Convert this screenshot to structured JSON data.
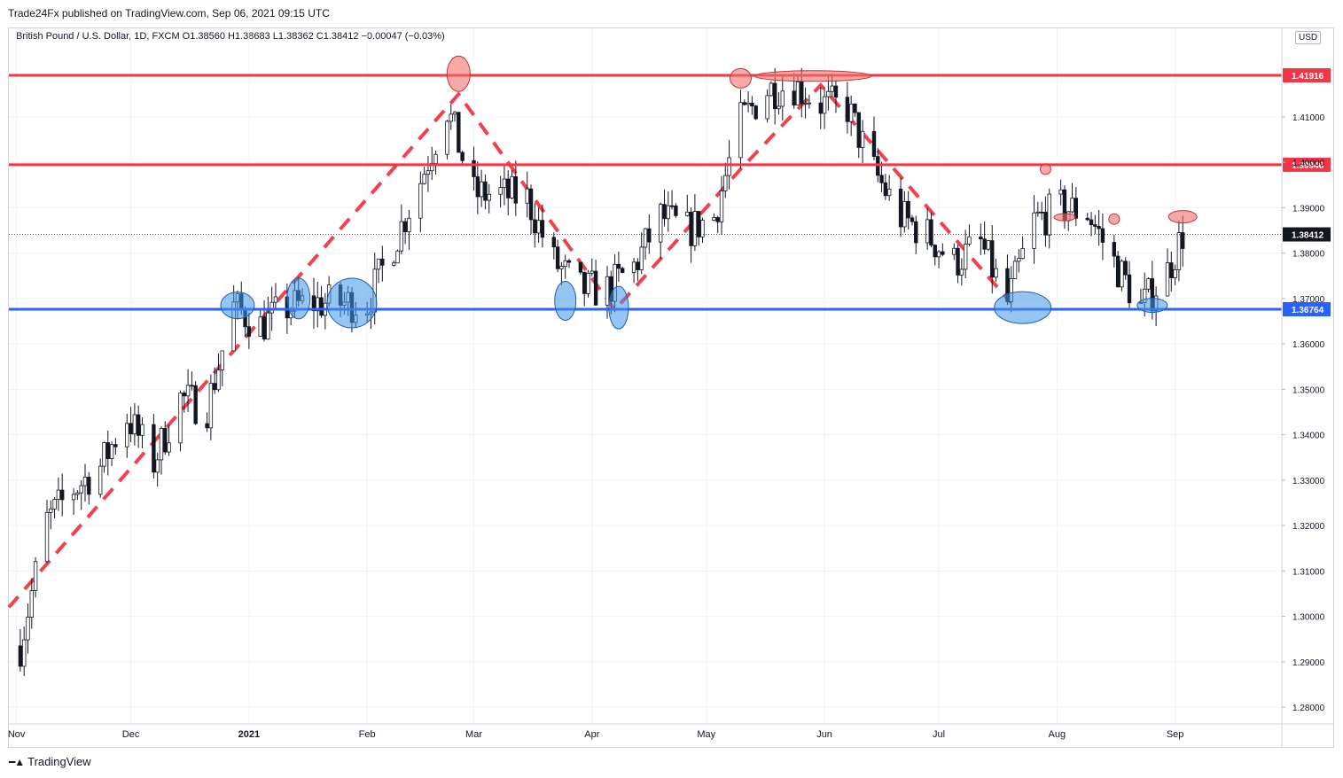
{
  "header": {
    "published": "Trade24Fx published on TradingView.com, Sep 06, 2021 09:15 UTC",
    "currency_button": "USD"
  },
  "footer": {
    "brand": "TradingView",
    "brand_icon": "tradingview-logo-icon"
  },
  "chart_data": {
    "type": "candlestick",
    "legend": {
      "text": "British Pound / U.S. Dollar, 1D, FXCM  O1.38560  H1.38683  L1.38362  C1.38412  −0.00047 (−0.03%)",
      "symbol": "British Pound / U.S. Dollar",
      "interval": "1D",
      "source": "FXCM",
      "open": 1.3856,
      "high": 1.38683,
      "low": 1.38362,
      "close": 1.38412,
      "change": -0.00047,
      "change_pct": -0.03
    },
    "y_ticks": [
      "1.28000",
      "1.29000",
      "1.30000",
      "1.31000",
      "1.32000",
      "1.33000",
      "1.34000",
      "1.35000",
      "1.36000",
      "1.37000",
      "1.38000",
      "1.39000",
      "1.40000",
      "1.41000"
    ],
    "ylim": [
      1.2765,
      1.4295
    ],
    "x_ticks": [
      "Nov",
      "Dec",
      "2021",
      "Feb",
      "Mar",
      "Apr",
      "May",
      "Jun",
      "Jul",
      "Aug",
      "Sep"
    ],
    "x_tick_dates": [
      "2020-11-01",
      "2020-12-01",
      "2021-01-01",
      "2021-02-01",
      "2021-03-01",
      "2021-04-01",
      "2021-05-01",
      "2021-06-01",
      "2021-07-01",
      "2021-08-01",
      "2021-09-01"
    ],
    "xlim": [
      "2020-10-30",
      "2021-09-29"
    ],
    "grid": true,
    "horizontal_levels": [
      {
        "value": 1.41916,
        "label": "1.41916",
        "color": "#f23645"
      },
      {
        "value": 1.39946,
        "label": "1.39946",
        "color": "#f23645"
      },
      {
        "value": 1.36764,
        "label": "1.36764",
        "color": "#2962ff"
      }
    ],
    "last_price": {
      "value": 1.38412,
      "label": "1.38412"
    },
    "trend_path": [
      [
        "2020-10-30",
        1.302
      ],
      [
        "2021-02-25",
        1.415
      ],
      [
        "2021-04-07",
        1.3675
      ],
      [
        "2021-05-10",
        1.3985
      ],
      [
        "2021-05-31",
        1.417
      ],
      [
        "2021-07-20",
        1.369
      ]
    ],
    "annotations": [
      {
        "kind": "support",
        "date": "2020-12-29",
        "price": 1.3685,
        "rx": 19,
        "ry": 15
      },
      {
        "kind": "support",
        "date": "2021-01-14",
        "price": 1.37,
        "rx": 13,
        "ry": 23
      },
      {
        "kind": "support",
        "date": "2021-01-28",
        "price": 1.369,
        "rx": 28,
        "ry": 28
      },
      {
        "kind": "support",
        "date": "2021-03-25",
        "price": 1.3695,
        "rx": 12,
        "ry": 22
      },
      {
        "kind": "support",
        "date": "2021-04-08",
        "price": 1.368,
        "rx": 11,
        "ry": 24
      },
      {
        "kind": "support",
        "date": "2021-07-23",
        "price": 1.368,
        "rx": 32,
        "ry": 18
      },
      {
        "kind": "support",
        "date": "2021-08-26",
        "price": 1.3685,
        "rx": 17,
        "ry": 8
      },
      {
        "kind": "resistance",
        "date": "2021-02-25",
        "price": 1.4195,
        "rx": 13,
        "ry": 20
      },
      {
        "kind": "resistance",
        "date": "2021-05-10",
        "price": 1.4185,
        "rx": 12,
        "ry": 11
      },
      {
        "kind": "resistance",
        "date": "2021-05-29",
        "price": 1.419,
        "rx": 66,
        "ry": 6
      },
      {
        "kind": "resistance",
        "date": "2021-07-29",
        "price": 1.3985,
        "rx": 6,
        "ry": 6
      },
      {
        "kind": "resistance",
        "date": "2021-08-03",
        "price": 1.3879,
        "rx": 12,
        "ry": 4
      },
      {
        "kind": "resistance",
        "date": "2021-08-16",
        "price": 1.3875,
        "rx": 6,
        "ry": 6
      },
      {
        "kind": "resistance",
        "date": "2021-09-03",
        "price": 1.388,
        "rx": 16,
        "ry": 7
      }
    ],
    "closes": [
      [
        "2020-11-02",
        1.2935
      ],
      [
        "2020-11-09",
        1.321
      ],
      [
        "2020-11-16",
        1.328
      ],
      [
        "2020-11-23",
        1.333
      ],
      [
        "2020-11-30",
        1.344
      ],
      [
        "2020-12-07",
        1.334
      ],
      [
        "2020-12-14",
        1.348
      ],
      [
        "2020-12-21",
        1.346
      ],
      [
        "2020-12-28",
        1.368
      ],
      [
        "2021-01-04",
        1.364
      ],
      [
        "2021-01-11",
        1.368
      ],
      [
        "2021-01-18",
        1.369
      ],
      [
        "2021-01-25",
        1.369
      ],
      [
        "2021-02-01",
        1.369
      ],
      [
        "2021-02-08",
        1.382
      ],
      [
        "2021-02-15",
        1.396
      ],
      [
        "2021-02-22",
        1.412
      ],
      [
        "2021-03-01",
        1.393
      ],
      [
        "2021-03-08",
        1.393
      ],
      [
        "2021-03-15",
        1.392
      ],
      [
        "2021-03-22",
        1.378
      ],
      [
        "2021-03-29",
        1.372
      ],
      [
        "2021-04-05",
        1.372
      ],
      [
        "2021-04-12",
        1.377
      ],
      [
        "2021-04-19",
        1.388
      ],
      [
        "2021-04-26",
        1.385
      ],
      [
        "2021-05-03",
        1.388
      ],
      [
        "2021-05-10",
        1.409
      ],
      [
        "2021-05-17",
        1.416
      ],
      [
        "2021-05-24",
        1.417
      ],
      [
        "2021-05-31",
        1.413
      ],
      [
        "2021-06-07",
        1.412
      ],
      [
        "2021-06-14",
        1.398
      ],
      [
        "2021-06-21",
        1.388
      ],
      [
        "2021-06-28",
        1.384
      ],
      [
        "2021-07-05",
        1.378
      ],
      [
        "2021-07-12",
        1.382
      ],
      [
        "2021-07-19",
        1.369
      ],
      [
        "2021-07-26",
        1.387
      ],
      [
        "2021-08-02",
        1.39
      ],
      [
        "2021-08-09",
        1.389
      ],
      [
        "2021-08-16",
        1.378
      ],
      [
        "2021-08-23",
        1.368
      ],
      [
        "2021-08-30",
        1.376
      ],
      [
        "2021-09-03",
        1.3841
      ]
    ]
  }
}
